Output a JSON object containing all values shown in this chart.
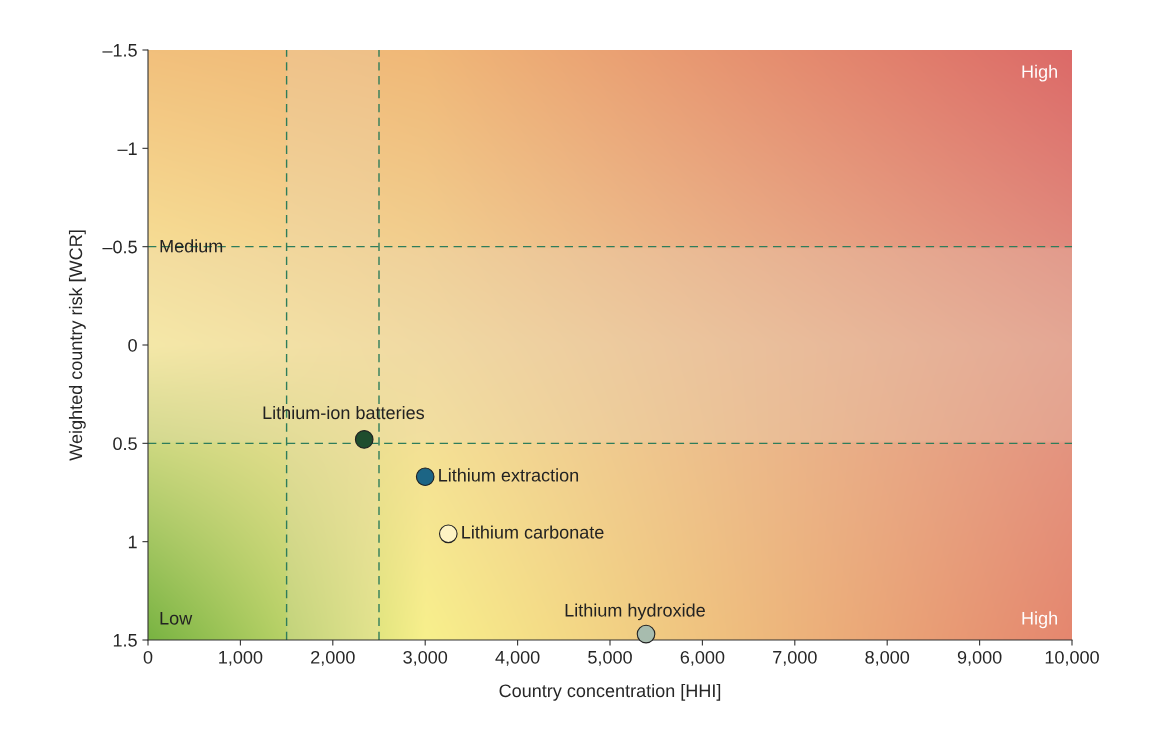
{
  "chart_data": {
    "type": "scatter",
    "xlabel": "Country concentration [HHI]",
    "ylabel": "Weighted country risk [WCR]",
    "series": [
      {
        "name": "Lithium-ion batteries",
        "color": "#1f4d2e",
        "x": [
          2340
        ],
        "values": [
          0.48
        ]
      },
      {
        "name": "Lithium extraction",
        "color": "#1c6585",
        "x": [
          3000
        ],
        "values": [
          0.67
        ]
      },
      {
        "name": "Lithium carbonate",
        "color": "#fdf3c4",
        "x": [
          3250
        ],
        "values": [
          0.96
        ]
      },
      {
        "name": "Lithium hydroxide",
        "color": "#a7bcae",
        "x": [
          5390
        ],
        "values": [
          1.47
        ]
      }
    ],
    "xlim": [
      0,
      10000
    ],
    "xticks": [
      {
        "value": 0,
        "label": "0"
      },
      {
        "value": 1000,
        "label": "1,000"
      },
      {
        "value": 2000,
        "label": "2,000"
      },
      {
        "value": 3000,
        "label": "3,000"
      },
      {
        "value": 4000,
        "label": "4,000"
      },
      {
        "value": 5000,
        "label": "5,000"
      },
      {
        "value": 6000,
        "label": "6,000"
      },
      {
        "value": 7000,
        "label": "7,000"
      },
      {
        "value": 8000,
        "label": "8,000"
      },
      {
        "value": 9000,
        "label": "9,000"
      },
      {
        "value": 10000,
        "label": "10,000"
      }
    ],
    "ylim": [
      1.5,
      -1.5
    ],
    "yticks": [
      {
        "value": -1.5,
        "label": "–1.5"
      },
      {
        "value": -1,
        "label": "–1"
      },
      {
        "value": -0.5,
        "label": "–0.5"
      },
      0,
      0.5,
      1,
      1.5
    ],
    "ref_lines": [
      {
        "axis": "x",
        "value": 1500,
        "color": "#2e7d5b",
        "line_style": "dashed"
      },
      {
        "axis": "x",
        "value": 2500,
        "color": "#2e7d5b",
        "line_style": "dashed"
      },
      {
        "axis": "y",
        "value": -0.5,
        "color": "#2e7d5b",
        "line_style": "dashed"
      },
      {
        "axis": "y",
        "value": 0.5,
        "color": "#2e7d5b",
        "line_style": "dashed"
      }
    ],
    "annotations": [
      "High",
      "Medium",
      "Low",
      "High"
    ],
    "marker": "circle",
    "legend": false,
    "grid": false
  }
}
